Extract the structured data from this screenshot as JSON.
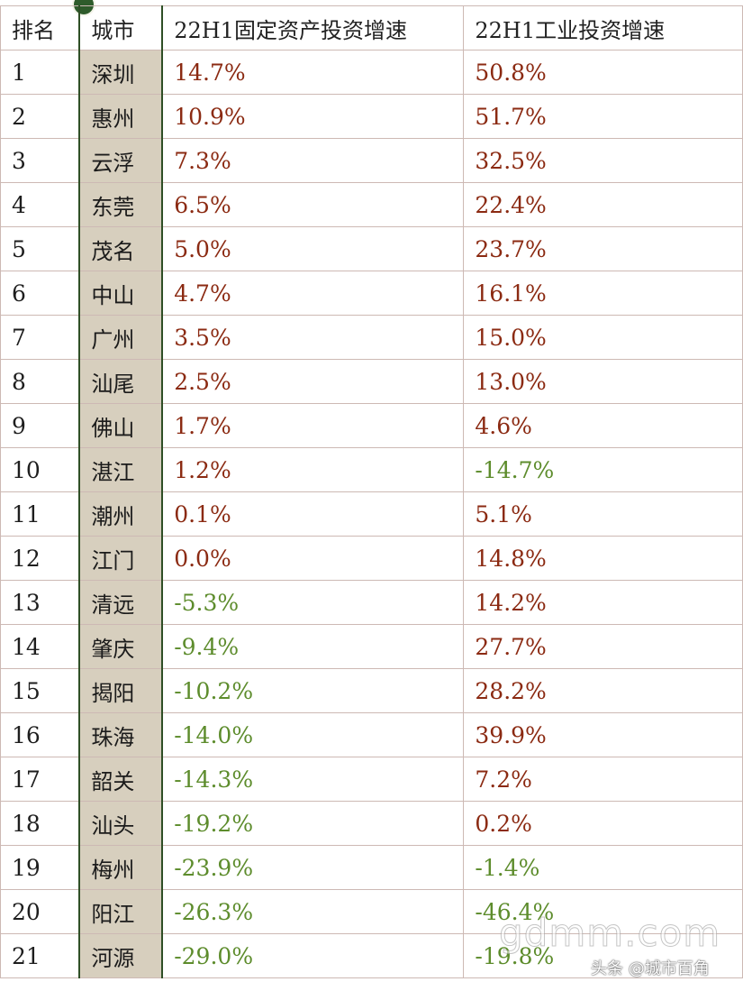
{
  "table": {
    "headers": [
      "排名",
      "城市",
      "22H1固定资产投资增速",
      "22H1工业投资增速"
    ],
    "rows": [
      {
        "rank": "1",
        "city": "深圳",
        "fixed": "14.7%",
        "industrial": "50.8%"
      },
      {
        "rank": "2",
        "city": "惠州",
        "fixed": "10.9%",
        "industrial": "51.7%"
      },
      {
        "rank": "3",
        "city": "云浮",
        "fixed": "7.3%",
        "industrial": "32.5%"
      },
      {
        "rank": "4",
        "city": "东莞",
        "fixed": "6.5%",
        "industrial": "22.4%"
      },
      {
        "rank": "5",
        "city": "茂名",
        "fixed": "5.0%",
        "industrial": "23.7%"
      },
      {
        "rank": "6",
        "city": "中山",
        "fixed": "4.7%",
        "industrial": "16.1%"
      },
      {
        "rank": "7",
        "city": "广州",
        "fixed": "3.5%",
        "industrial": "15.0%"
      },
      {
        "rank": "8",
        "city": "汕尾",
        "fixed": "2.5%",
        "industrial": "13.0%"
      },
      {
        "rank": "9",
        "city": "佛山",
        "fixed": "1.7%",
        "industrial": "4.6%"
      },
      {
        "rank": "10",
        "city": "湛江",
        "fixed": "1.2%",
        "industrial": "-14.7%"
      },
      {
        "rank": "11",
        "city": "潮州",
        "fixed": "0.1%",
        "industrial": "5.1%"
      },
      {
        "rank": "12",
        "city": "江门",
        "fixed": "0.0%",
        "industrial": "14.8%"
      },
      {
        "rank": "13",
        "city": "清远",
        "fixed": "-5.3%",
        "industrial": "14.2%"
      },
      {
        "rank": "14",
        "city": "肇庆",
        "fixed": "-9.4%",
        "industrial": "27.7%"
      },
      {
        "rank": "15",
        "city": "揭阳",
        "fixed": "-10.2%",
        "industrial": "28.2%"
      },
      {
        "rank": "16",
        "city": "珠海",
        "fixed": "-14.0%",
        "industrial": "39.9%"
      },
      {
        "rank": "17",
        "city": "韶关",
        "fixed": "-14.3%",
        "industrial": "7.2%"
      },
      {
        "rank": "18",
        "city": "汕头",
        "fixed": "-19.2%",
        "industrial": "0.2%"
      },
      {
        "rank": "19",
        "city": "梅州",
        "fixed": "-23.9%",
        "industrial": "-1.4%"
      },
      {
        "rank": "20",
        "city": "阳江",
        "fixed": "-26.3%",
        "industrial": "-46.4%"
      },
      {
        "rank": "21",
        "city": "河源",
        "fixed": "-29.0%",
        "industrial": "-19.8%"
      }
    ]
  },
  "colors": {
    "positive": "#8b2a12",
    "negative": "#5d8c2c",
    "city_column_bg": "#d7cfbe",
    "grid": "#cdb9b4"
  },
  "watermark": "gdmm.com",
  "credit": "头条 @城市百角"
}
